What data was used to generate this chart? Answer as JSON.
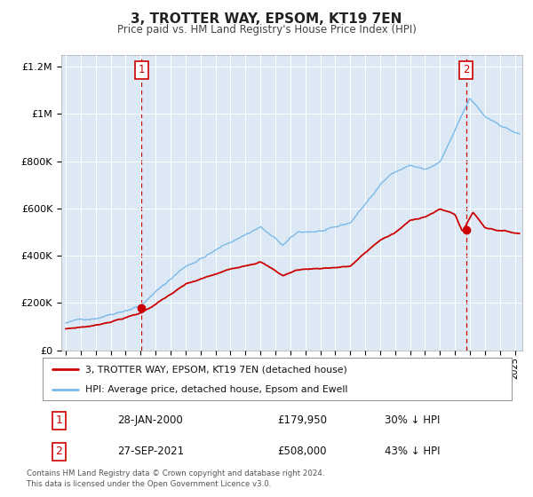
{
  "title": "3, TROTTER WAY, EPSOM, KT19 7EN",
  "subtitle": "Price paid vs. HM Land Registry's House Price Index (HPI)",
  "background_color": "#dce9f5",
  "plot_bg_color": "#dce9f5",
  "fig_bg_color": "#ffffff",
  "hpi_color": "#7ab8e8",
  "price_color": "#cc0000",
  "vline_color": "#cc0000",
  "ylim": [
    0,
    1250000
  ],
  "xlim_start": 1994.7,
  "xlim_end": 2025.5,
  "sale1_year": 2000.07,
  "sale1_price": 179950,
  "sale2_year": 2021.74,
  "sale2_price": 508000,
  "legend_line1": "3, TROTTER WAY, EPSOM, KT19 7EN (detached house)",
  "legend_line2": "HPI: Average price, detached house, Epsom and Ewell",
  "note1_date": "28-JAN-2000",
  "note1_price": "£179,950",
  "note1_pct": "30% ↓ HPI",
  "note2_date": "27-SEP-2021",
  "note2_price": "£508,000",
  "note2_pct": "43% ↓ HPI",
  "footer": "Contains HM Land Registry data © Crown copyright and database right 2024.\nThis data is licensed under the Open Government Licence v3.0.",
  "ytick_labels": [
    "£0",
    "£200K",
    "£400K",
    "£600K",
    "£800K",
    "£1M",
    "£1.2M"
  ],
  "ytick_values": [
    0,
    200000,
    400000,
    600000,
    800000,
    1000000,
    1200000
  ]
}
